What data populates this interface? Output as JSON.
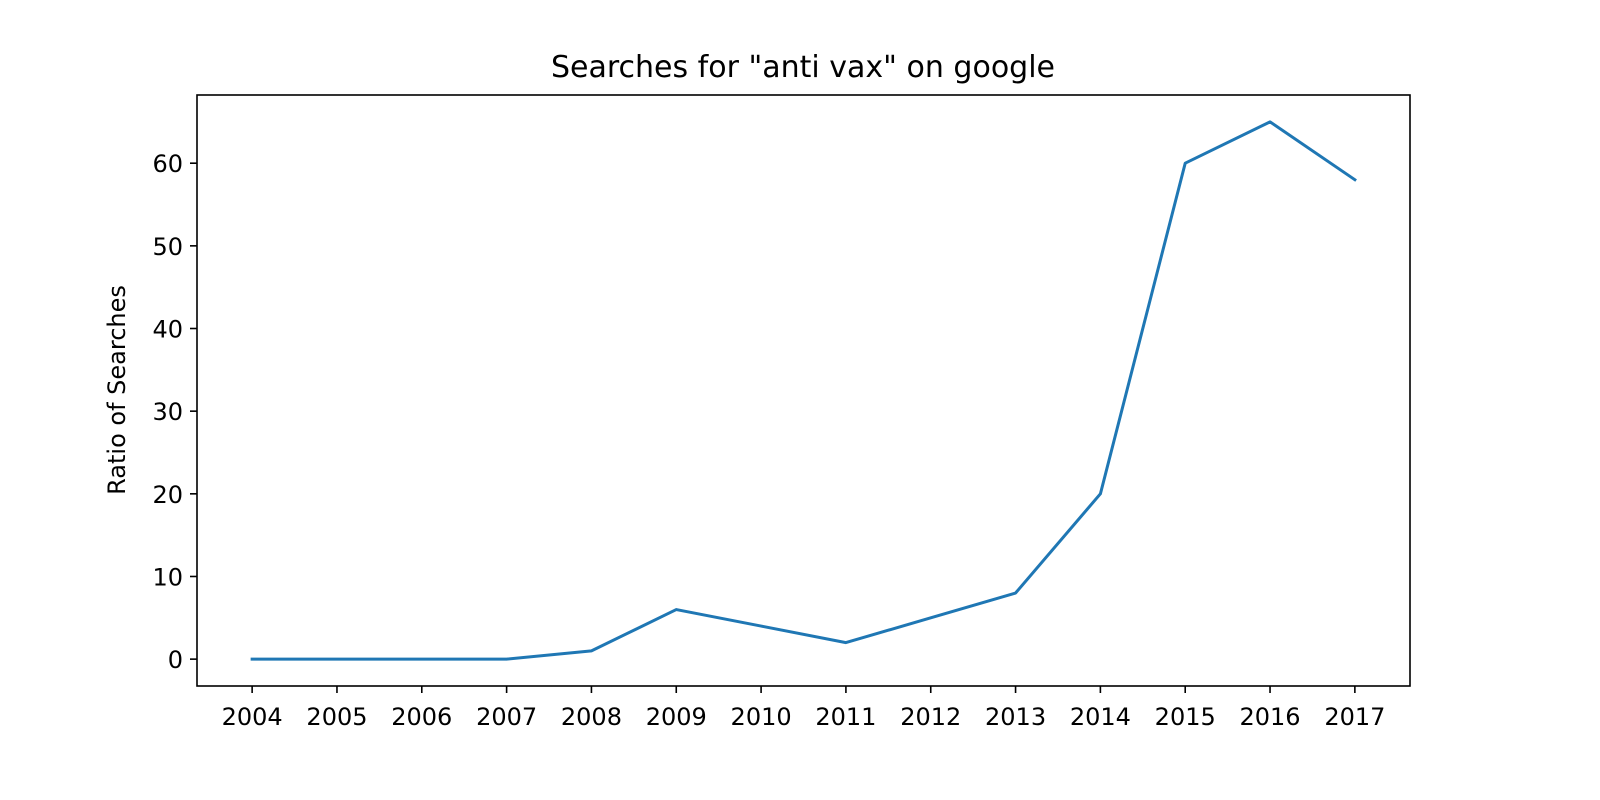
{
  "chart_data": {
    "type": "line",
    "title": "Searches for \"anti vax\" on google",
    "xlabel": "",
    "ylabel": "Ratio of Searches",
    "x": [
      "2004",
      "2005",
      "2006",
      "2007",
      "2008",
      "2009",
      "2010",
      "2011",
      "2012",
      "2013",
      "2014",
      "2015",
      "2016",
      "2017"
    ],
    "series": [
      {
        "values": [
          0,
          0,
          0,
          0,
          1,
          6,
          4,
          2,
          5,
          8,
          20,
          60,
          65,
          58
        ],
        "color": "#1f77b4"
      }
    ],
    "xlim": [
      2003.35,
      2017.65
    ],
    "ylim": [
      -3.25,
      68.25
    ],
    "yticks": [
      0,
      10,
      20,
      30,
      40,
      50,
      60
    ],
    "grid": false,
    "legend": "none"
  }
}
